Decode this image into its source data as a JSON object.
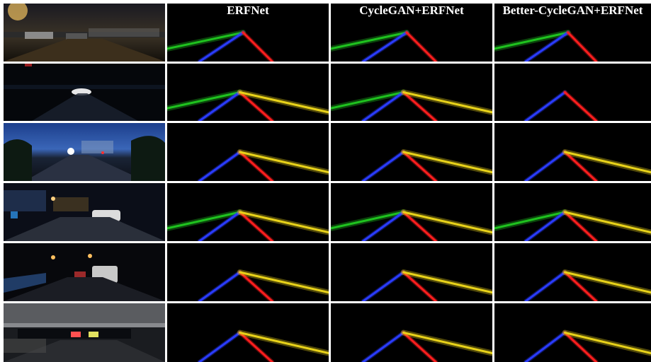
{
  "headers": [
    "ERFNet",
    "CycleGAN+ERFNet",
    "Better-CycleGAN+ERFNet"
  ],
  "colors": {
    "lane_left_outer": "#1fc21f",
    "lane_left": "#2a3cff",
    "lane_right": "#ff1e1e",
    "lane_right_outer": "#e8d21a"
  },
  "rows": [
    {
      "scene": "night-street-lamps",
      "lanes": [
        [
          "green",
          "blue",
          "red"
        ],
        [
          "green",
          "blue",
          "red"
        ],
        [
          "green",
          "blue",
          "red"
        ]
      ]
    },
    {
      "scene": "dark-highway-headlights",
      "lanes": [
        [
          "green",
          "blue",
          "red",
          "yellow"
        ],
        [
          "green",
          "blue",
          "red",
          "yellow"
        ],
        [
          "blue",
          "red"
        ]
      ]
    },
    {
      "scene": "dusk-road-blue-sky",
      "lanes": [
        [
          "blue",
          "red",
          "yellow"
        ],
        [
          "blue",
          "red",
          "yellow"
        ],
        [
          "blue",
          "red",
          "yellow"
        ]
      ]
    },
    {
      "scene": "city-night-cars",
      "lanes": [
        [
          "green",
          "blue",
          "red",
          "yellow"
        ],
        [
          "green",
          "blue",
          "red",
          "yellow"
        ],
        [
          "green",
          "blue",
          "red",
          "yellow"
        ]
      ]
    },
    {
      "scene": "rain-night-van",
      "lanes": [
        [
          "blue",
          "red",
          "yellow"
        ],
        [
          "blue",
          "red",
          "yellow"
        ],
        [
          "blue",
          "red",
          "yellow"
        ]
      ]
    },
    {
      "scene": "tunnel-underpass",
      "lanes": [
        [
          "blue",
          "red",
          "yellow"
        ],
        [
          "blue",
          "red",
          "yellow"
        ],
        [
          "blue",
          "red",
          "yellow"
        ]
      ]
    }
  ]
}
